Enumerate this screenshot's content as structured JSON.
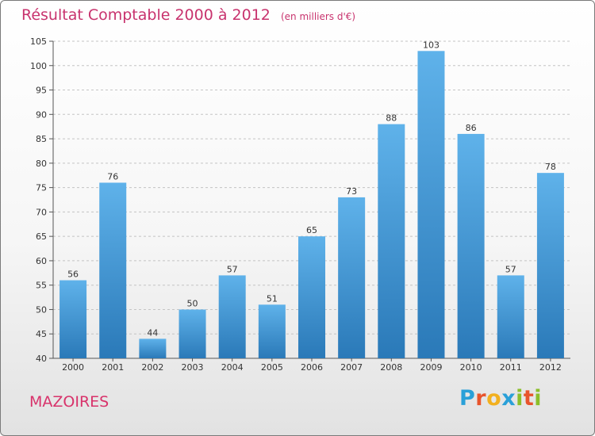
{
  "header": {
    "title": "Résultat Comptable 2000 à 2012",
    "unit": "(en milliers d'€)"
  },
  "location": "MAZOIRES",
  "logo": {
    "letters": [
      "P",
      "r",
      "o",
      "x",
      "i",
      "t",
      "i"
    ],
    "colors": [
      "#2aa0d8",
      "#e8542c",
      "#f2b01f",
      "#2aa0d8",
      "#8cbf2a",
      "#e8542c",
      "#8cbf2a"
    ]
  },
  "colors": {
    "bar_top": "#5fb2ea",
    "bar_bottom": "#2a79b8",
    "title": "#c8336e",
    "grid": "#c4c4c4"
  },
  "chart_data": {
    "type": "bar",
    "title": "Résultat Comptable 2000 à 2012",
    "subtitle": "(en milliers d'€)",
    "xlabel": "",
    "ylabel": "",
    "categories": [
      "2000",
      "2001",
      "2002",
      "2003",
      "2004",
      "2005",
      "2006",
      "2007",
      "2008",
      "2009",
      "2010",
      "2011",
      "2012"
    ],
    "values": [
      56,
      76,
      44,
      50,
      57,
      51,
      65,
      73,
      88,
      103,
      86,
      57,
      78
    ],
    "ylim": [
      40,
      105
    ],
    "yticks": [
      40,
      45,
      50,
      55,
      60,
      65,
      70,
      75,
      80,
      85,
      90,
      95,
      100,
      105
    ],
    "grid": true,
    "legend": "none"
  }
}
